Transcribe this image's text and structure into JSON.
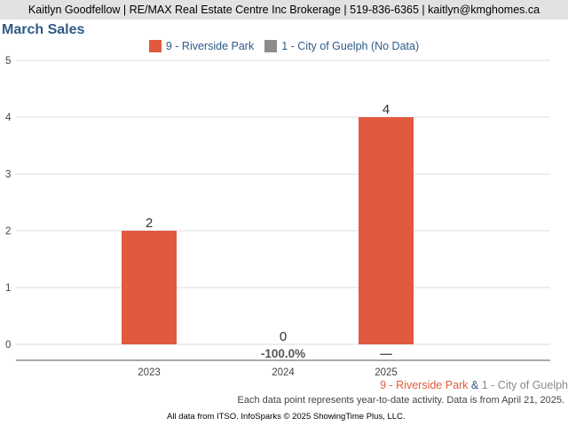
{
  "header": {
    "contact": "Kaitlyn Goodfellow | RE/MAX Real Estate Centre Inc Brokerage | 519-836-6365 | kaitlyn@kmghomes.ca"
  },
  "chart_data": {
    "type": "bar",
    "title": "March Sales",
    "categories": [
      "2023",
      "2024",
      "2025"
    ],
    "series": [
      {
        "name": "9 - Riverside Park",
        "values": [
          2,
          0,
          4
        ],
        "color": "#e15a3f"
      },
      {
        "name": "1 - City of Guelph (No Data)",
        "values": [
          null,
          null,
          null
        ],
        "color": "#8c8c8c"
      }
    ],
    "value_labels": [
      "2",
      "0",
      "4"
    ],
    "change_labels": [
      "",
      "-100.0%",
      "—"
    ],
    "yticks": [
      "0",
      "1",
      "2",
      "3",
      "4",
      "5"
    ],
    "ylim": [
      0,
      5
    ],
    "xlabel": "",
    "ylabel": "",
    "grid": true,
    "legend": "top-center"
  },
  "footer": {
    "series_primary": "9 - Riverside Park",
    "ampersand": " & ",
    "series_secondary": "1 - City of Guelph",
    "note": "Each data point represents year-to-date activity. Data is from April 21, 2025.",
    "source": "All data from ITSO. InfoSparks © 2025 ShowingTime Plus, LLC."
  }
}
